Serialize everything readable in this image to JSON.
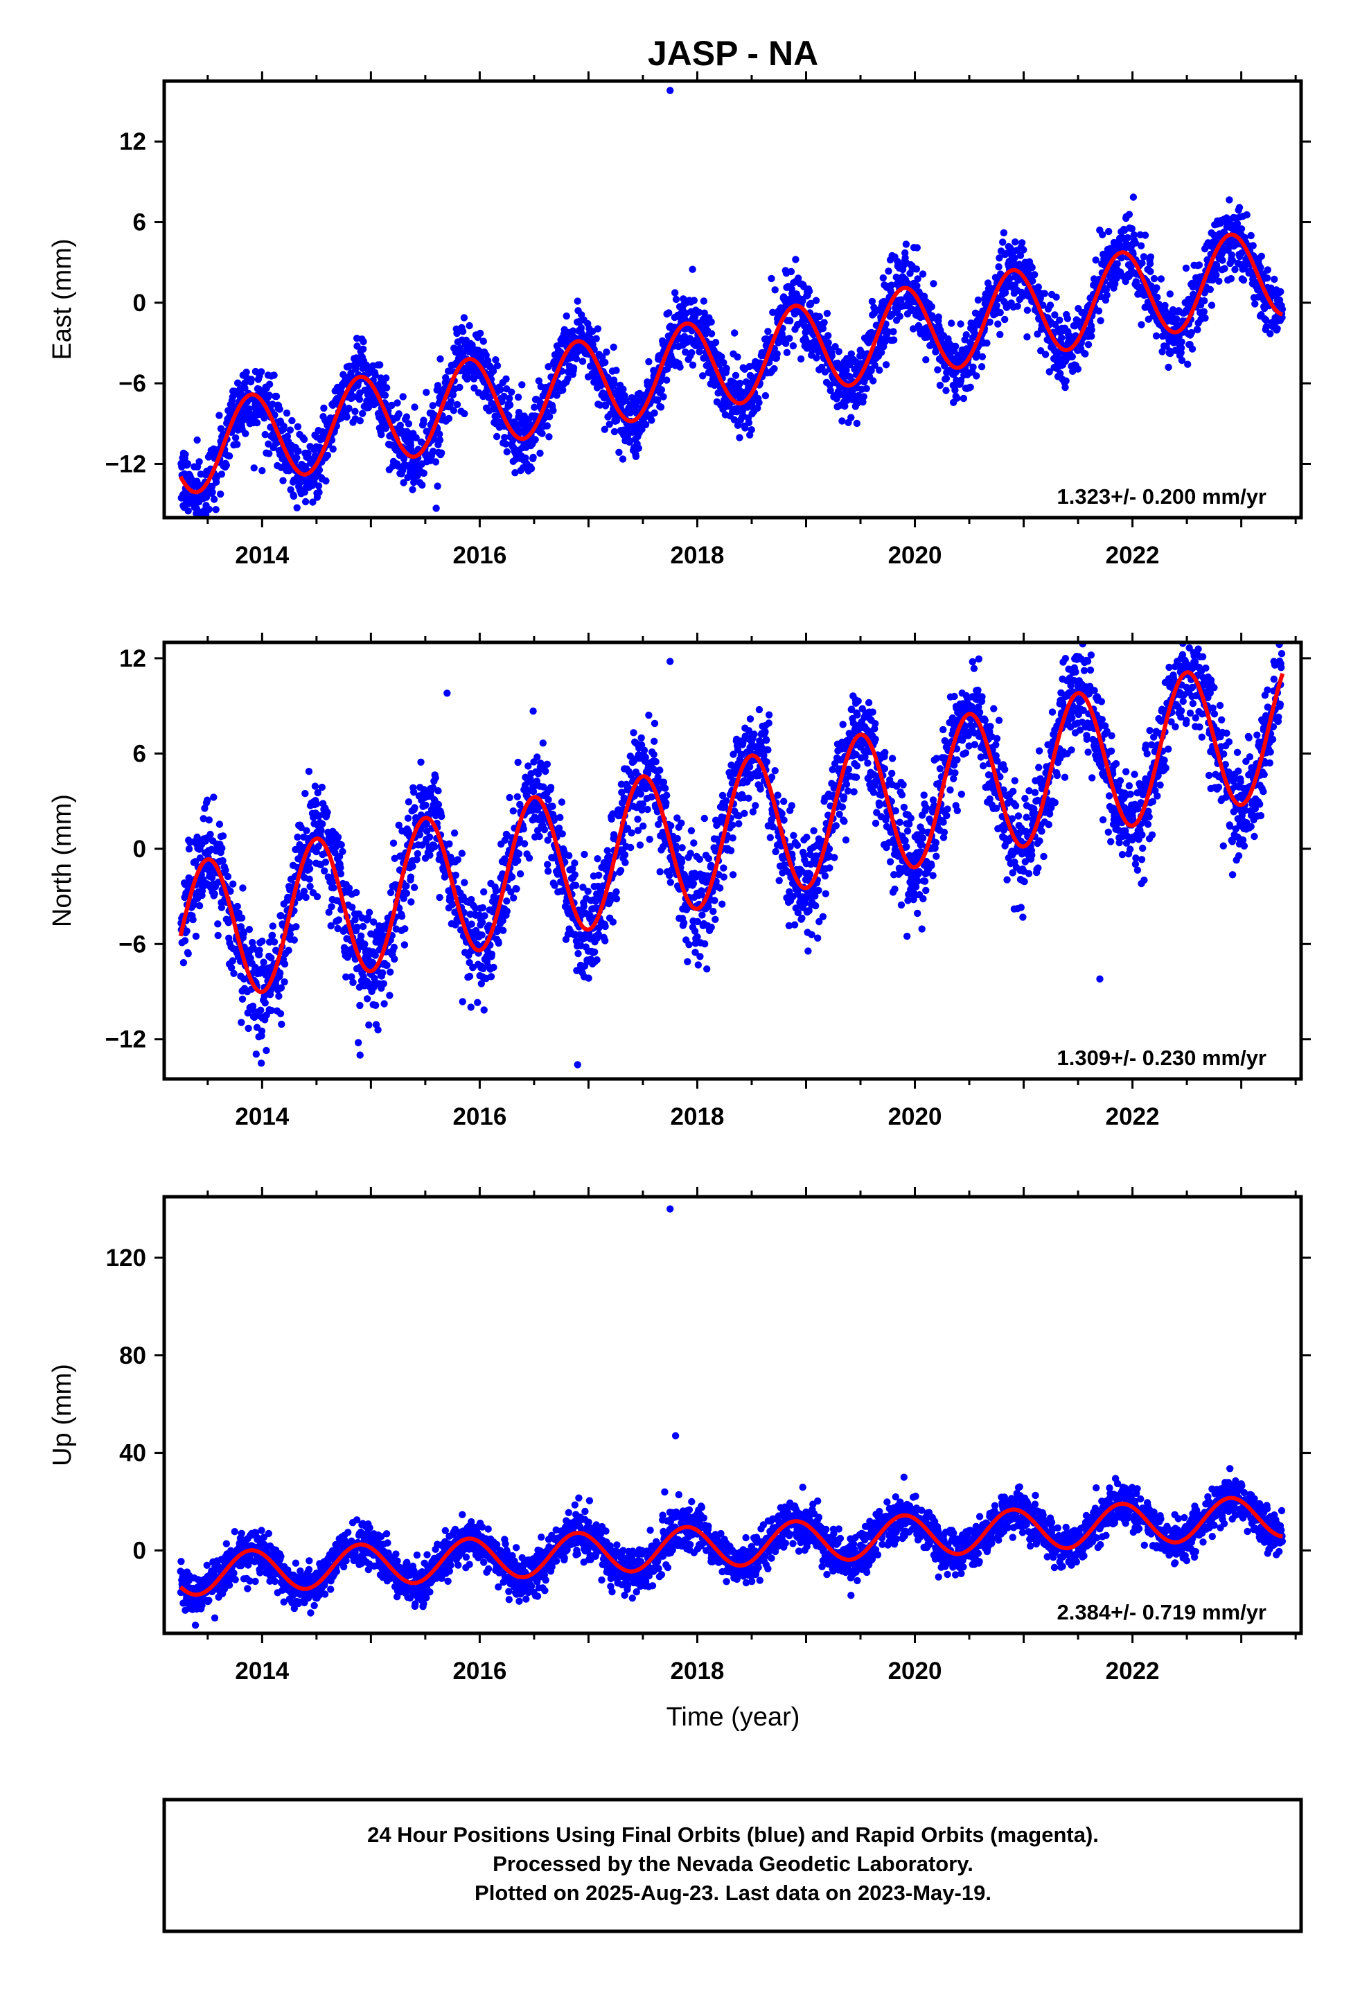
{
  "title": "JASP - NA",
  "xlabel": "Time (year)",
  "footer": [
    "24 Hour Positions Using Final Orbits (blue) and Rapid Orbits (magenta).",
    "Processed by the Nevada Geodetic Laboratory.",
    "Plotted on 2025-Aug-23. Last data on 2023-May-19."
  ],
  "colors": {
    "data": "#0000ff",
    "fit": "#ff0000",
    "frame": "#000000"
  },
  "chart_data": [
    {
      "type": "scatter",
      "name": "east",
      "ylabel": "East (mm)",
      "rate_label": "1.323+/- 0.200 mm/yr",
      "xlim": [
        2013.1,
        2023.55
      ],
      "ylim": [
        -16,
        16.5
      ],
      "xticks": [
        2014,
        2016,
        2018,
        2020,
        2022
      ],
      "yticks": [
        -12,
        -6,
        0,
        6,
        12
      ],
      "model": {
        "start": 2013.25,
        "end": 2023.38,
        "offset": -11.0,
        "rate": 1.323,
        "amplitude": 3.3,
        "peak_phase": 0.9,
        "noise_sd": 1.3
      },
      "outliers": [
        {
          "x": 2017.75,
          "y": 15.8
        },
        {
          "x": 2015.6,
          "y": -15.3
        },
        {
          "x": 2014.0,
          "y": -12.5
        }
      ]
    },
    {
      "type": "scatter",
      "name": "north",
      "ylabel": "North (mm)",
      "rate_label": "1.309+/- 0.230 mm/yr",
      "xlim": [
        2013.1,
        2023.55
      ],
      "ylim": [
        -14.5,
        13
      ],
      "xticks": [
        2014,
        2016,
        2018,
        2020,
        2022
      ],
      "yticks": [
        -12,
        -6,
        0,
        6,
        12
      ],
      "model": {
        "start": 2013.25,
        "end": 2023.38,
        "offset": -5.5,
        "rate": 1.309,
        "amplitude": 4.5,
        "peak_phase": 0.5,
        "noise_sd": 1.6
      },
      "outliers": [
        {
          "x": 2017.75,
          "y": 11.8
        },
        {
          "x": 2015.7,
          "y": 9.8
        },
        {
          "x": 2016.9,
          "y": -13.6
        },
        {
          "x": 2014.9,
          "y": -13.0
        },
        {
          "x": 2021.7,
          "y": -8.2
        },
        {
          "x": 2023.3,
          "y": 11.8
        }
      ]
    },
    {
      "type": "scatter",
      "name": "up",
      "ylabel": "Up (mm)",
      "rate_label": "2.384+/- 0.719 mm/yr",
      "xlim": [
        2013.1,
        2023.55
      ],
      "ylim": [
        -34,
        145
      ],
      "xticks": [
        2014,
        2016,
        2018,
        2020,
        2022
      ],
      "yticks": [
        0,
        40,
        80,
        120
      ],
      "model": {
        "start": 2013.25,
        "end": 2023.38,
        "offset": -10.0,
        "rate": 2.384,
        "amplitude": 8.5,
        "peak_phase": 0.9,
        "noise_sd": 4.5
      },
      "outliers": [
        {
          "x": 2017.75,
          "y": 140
        },
        {
          "x": 2017.8,
          "y": 47
        },
        {
          "x": 2017.7,
          "y": 24
        },
        {
          "x": 2019.9,
          "y": 30
        }
      ]
    }
  ]
}
